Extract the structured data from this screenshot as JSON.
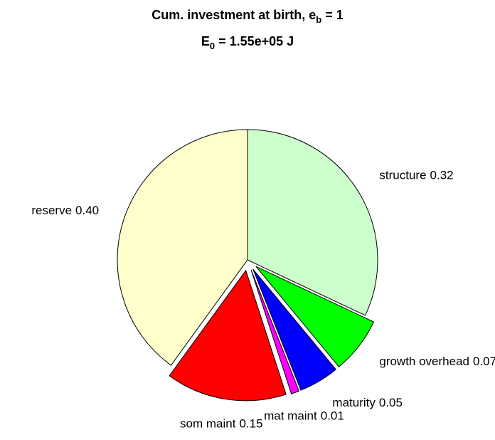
{
  "chart_data": {
    "type": "pie",
    "title_lines": [
      [
        "Cum. investment at birth, e",
        "b",
        " = 1"
      ],
      [
        "E",
        "0",
        " = 1.55e+05 J"
      ]
    ],
    "categories": [
      "structure",
      "growth overhead",
      "maturity",
      "mat maint",
      "som maint",
      "reserve"
    ],
    "values": [
      0.32,
      0.07,
      0.05,
      0.01,
      0.15,
      0.4
    ],
    "value_labels": [
      "0.32",
      "0.07",
      "0.05",
      "0.01",
      "0.15",
      "0.40"
    ],
    "colors": [
      "#ccffcc",
      "#00ff00",
      "#0000ff",
      "#ff00ff",
      "#ff0000",
      "#ffffcc"
    ],
    "explode": [
      false,
      true,
      true,
      true,
      true,
      false
    ]
  }
}
